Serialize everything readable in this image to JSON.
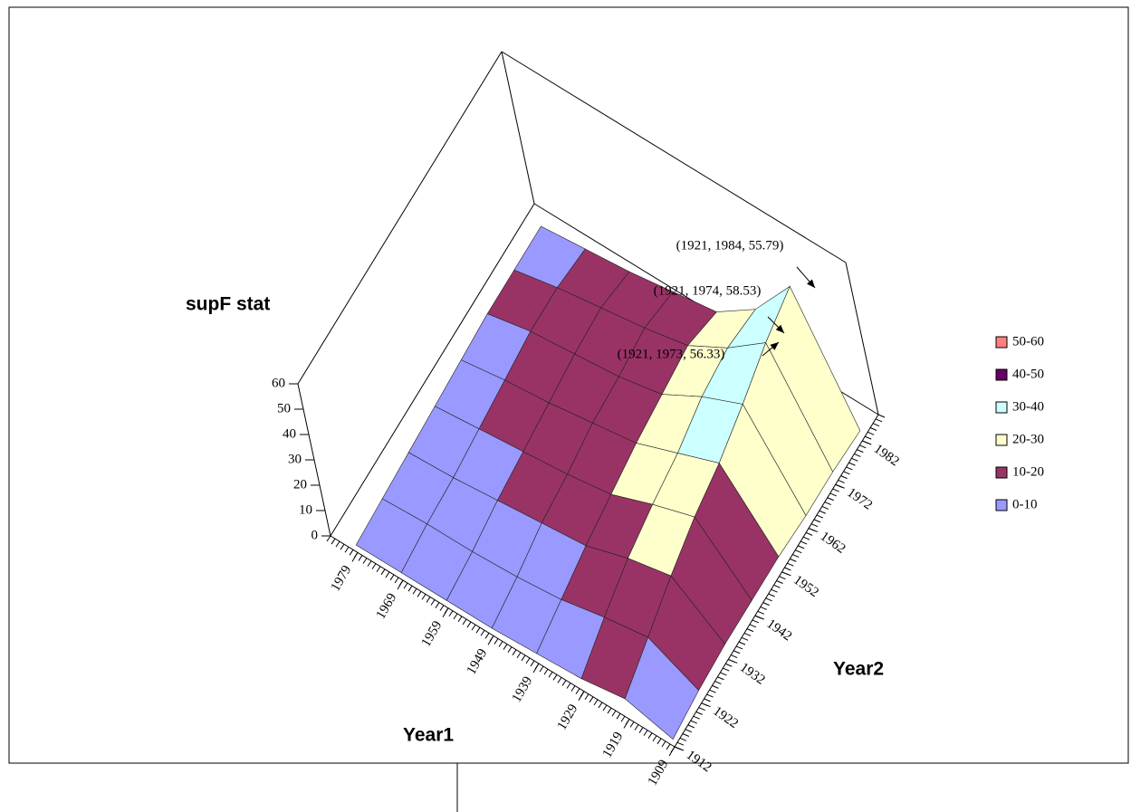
{
  "chart_data": {
    "type": "surface3d",
    "z_label": "supF stat",
    "x_label": "Year1",
    "y_label": "Year2",
    "xlim": [
      1909,
      1985
    ],
    "ylim": [
      1912,
      1988
    ],
    "zlim": [
      0,
      60
    ],
    "xticks": [
      1909,
      1919,
      1929,
      1939,
      1949,
      1959,
      1969,
      1979
    ],
    "yticks": [
      1912,
      1922,
      1932,
      1942,
      1952,
      1962,
      1972,
      1982
    ],
    "zticks": [
      0,
      10,
      20,
      30,
      40,
      50,
      60
    ],
    "x": [
      1909,
      1919,
      1929,
      1939,
      1949,
      1959,
      1969,
      1979
    ],
    "y": [
      1912,
      1922,
      1932,
      1942,
      1952,
      1962,
      1972,
      1982
    ],
    "z": [
      [
        3,
        5,
        6,
        6,
        6,
        5,
        5,
        4
      ],
      [
        8,
        15,
        22,
        28,
        32,
        38,
        45,
        50
      ],
      [
        5,
        12,
        18,
        22,
        25,
        30,
        32,
        30
      ],
      [
        4,
        8,
        12,
        15,
        18,
        20,
        22,
        18
      ],
      [
        3,
        6,
        10,
        12,
        15,
        16,
        18,
        15
      ],
      [
        3,
        5,
        8,
        10,
        12,
        14,
        15,
        12
      ],
      [
        3,
        5,
        6,
        8,
        10,
        12,
        12,
        10
      ],
      [
        3,
        4,
        5,
        6,
        7,
        8,
        8,
        8
      ]
    ],
    "legend": [
      {
        "name": "50-60",
        "color": "#ff8080"
      },
      {
        "name": "40-50",
        "color": "#660066"
      },
      {
        "name": "30-40",
        "color": "#ccffff"
      },
      {
        "name": "20-30",
        "color": "#ffffcc"
      },
      {
        "name": "10-20",
        "color": "#993366"
      },
      {
        "name": "0-10",
        "color": "#9999ff"
      }
    ],
    "annotations": [
      "(1921, 1984, 55.79)",
      "(1921, 1974, 58.53)",
      "(1921, 1973, 56.33)"
    ]
  }
}
